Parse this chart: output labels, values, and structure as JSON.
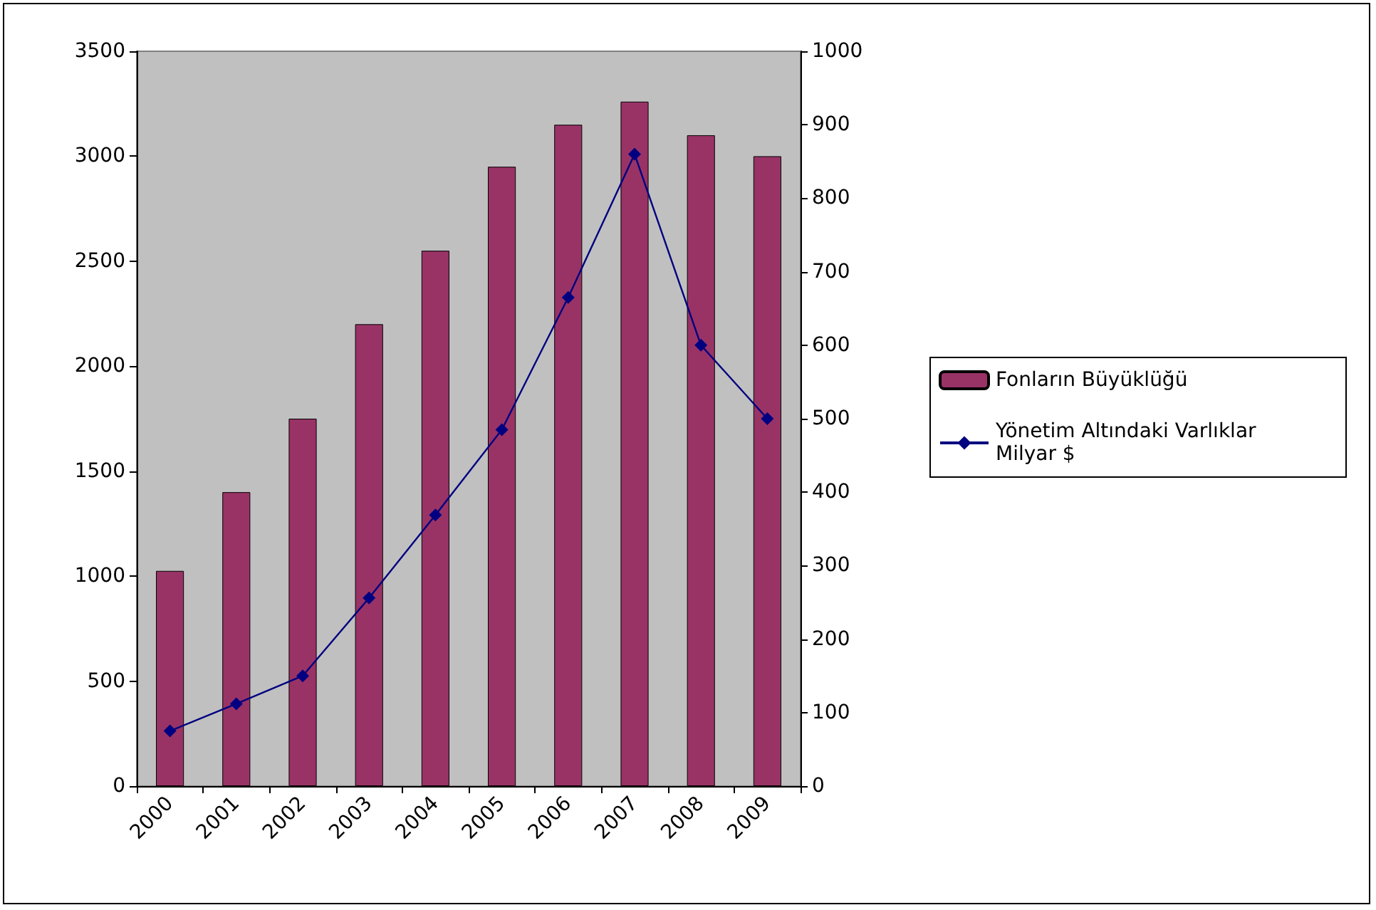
{
  "chart_data": {
    "type": "bar",
    "categories": [
      "2000",
      "2001",
      "2002",
      "2003",
      "2004",
      "2005",
      "2006",
      "2007",
      "2008",
      "2009"
    ],
    "series": [
      {
        "name": "Fonların Büyüklüğü",
        "color": "#993366",
        "values": [
          1025,
          1400,
          1750,
          2200,
          2550,
          2950,
          3150,
          3260,
          3100,
          3000
        ]
      },
      {
        "name": "Yönetim Altındaki Varlıklar Milyar $",
        "type": "line",
        "axis": "y2",
        "color": "#000080",
        "marker": "diamond",
        "values": [
          75,
          112,
          150,
          256,
          369,
          485,
          665,
          860,
          600,
          500
        ]
      }
    ],
    "ylim": [
      0,
      3500
    ],
    "yticks": [
      0,
      500,
      1000,
      1500,
      2000,
      2500,
      3000,
      3500
    ],
    "y2lim": [
      0,
      1000
    ],
    "y2ticks": [
      0,
      100,
      200,
      300,
      400,
      500,
      600,
      700,
      800,
      900,
      1000
    ],
    "grid": false,
    "legend": "right"
  }
}
